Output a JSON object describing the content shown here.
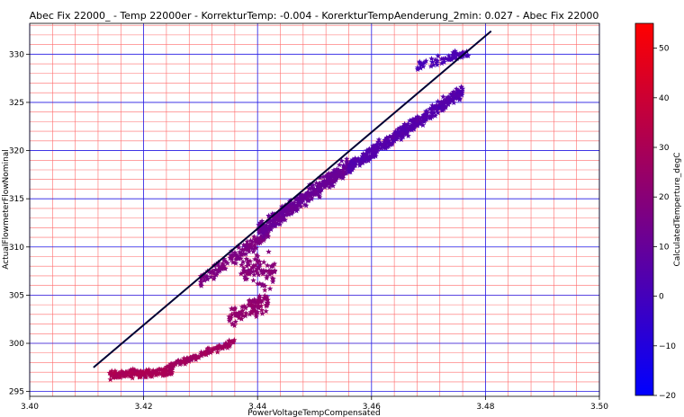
{
  "chart_data": {
    "type": "scatter",
    "title": "Abec Fix 22000_ - Temp 22000er - KorrekturTemp: -0.004 - KorerkturTempAenderung_2min: 0.027 - Abec Fix 22000",
    "xlabel": "PowerVoltageTempCompensated",
    "ylabel": "ActualFlowmeterFlowNominal",
    "xlim": [
      3.4,
      3.5
    ],
    "ylim": [
      294.5,
      333.2
    ],
    "x_ticks": [
      "3.40",
      "3.42",
      "3.44",
      "3.46",
      "3.48",
      "3.50"
    ],
    "y_ticks": [
      "295",
      "300",
      "305",
      "310",
      "315",
      "320",
      "325",
      "330"
    ],
    "grid": {
      "major": "blue",
      "minor": "red"
    },
    "marker": "star",
    "colorbar": {
      "label": "CalculatedTemperture_degC",
      "min": -20,
      "max": 55,
      "ticks": [
        "−20",
        "−10",
        "0",
        "10",
        "20",
        "30",
        "40",
        "50"
      ],
      "colormap": [
        "#0000ff",
        "#ff0000"
      ]
    },
    "fit_line": {
      "x": [
        3.4112,
        3.481
      ],
      "y": [
        297.5,
        332.4
      ],
      "color": "#000033"
    },
    "clusters": [
      {
        "x": [
          3.414,
          3.425
        ],
        "y_center": 296.9,
        "y_spread": 0.6,
        "slope": 30,
        "temp": 30,
        "count": 170
      },
      {
        "x": [
          3.424,
          3.436
        ],
        "y_center": 298.8,
        "y_spread": 0.5,
        "slope": 230,
        "temp": 27,
        "count": 110
      },
      {
        "x": [
          3.435,
          3.442
        ],
        "y_center": 303.6,
        "y_spread": 1.5,
        "slope": 300,
        "temp": 23,
        "count": 100
      },
      {
        "x": [
          3.437,
          3.443
        ],
        "y_center": 307.5,
        "y_spread": 2.2,
        "slope": 0,
        "temp": 19,
        "count": 80
      },
      {
        "x": [
          3.43,
          3.442
        ],
        "y_center": 309.0,
        "y_spread": 1.0,
        "slope": 420,
        "temp": 17,
        "count": 150
      },
      {
        "x": [
          3.44,
          3.456
        ],
        "y_center": 315.0,
        "y_spread": 1.2,
        "slope": 430,
        "temp": 11,
        "count": 420
      },
      {
        "x": [
          3.456,
          3.476
        ],
        "y_center": 322.2,
        "y_spread": 1.0,
        "slope": 400,
        "temp": 5,
        "count": 420
      },
      {
        "x": [
          3.468,
          3.477
        ],
        "y_center": 329.5,
        "y_spread": 0.8,
        "slope": 160,
        "temp": 2,
        "count": 60
      }
    ]
  }
}
